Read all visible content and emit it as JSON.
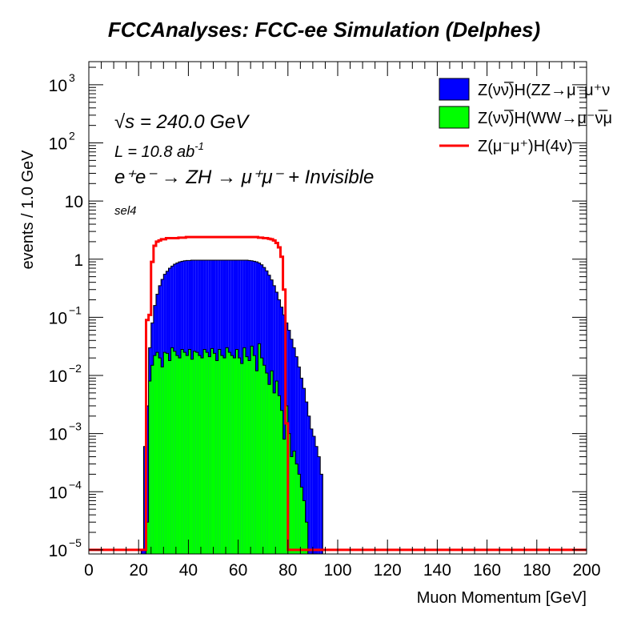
{
  "chart_data": {
    "type": "histogram",
    "title": "FCCAnalyses: FCC-ee Simulation (Delphes)",
    "xlabel": "Muon Momentum [GeV]",
    "ylabel": "events / 1.0 GeV",
    "xlim": [
      0,
      200
    ],
    "ylim": [
      8.5e-06,
      2500
    ],
    "yscale": "log",
    "x_ticks": [
      "0",
      "20",
      "40",
      "60",
      "80",
      "100",
      "120",
      "140",
      "160",
      "180",
      "200"
    ],
    "y_ticks": [
      {
        "base": "10",
        "exp": "3",
        "value": 1000
      },
      {
        "base": "10",
        "exp": "2",
        "value": 100
      },
      {
        "base": "10",
        "exp": "",
        "value": 10
      },
      {
        "base": "1",
        "exp": "",
        "value": 1
      },
      {
        "base": "10",
        "exp": "−1",
        "value": 0.1
      },
      {
        "base": "10",
        "exp": "−2",
        "value": 0.01
      },
      {
        "base": "10",
        "exp": "−3",
        "value": 0.001
      },
      {
        "base": "10",
        "exp": "−4",
        "value": 0.0001
      },
      {
        "base": "10",
        "exp": "−5",
        "value": 1e-05
      }
    ],
    "annotations": {
      "sqrt_s": "√s = 240.0 GeV",
      "lumi": "L = 10.8 ab",
      "lumi_exp": "-1",
      "process": "e⁺e⁻ → ZH → μ⁺μ⁻ + Invisible",
      "selection": "sel4"
    },
    "legend_position": "top-right",
    "series": [
      {
        "name": "Z(νν̅)H(ZZ→μ⁻μ⁺ν",
        "style": "stacked-fill",
        "color": "#0000ff",
        "bins": [
          [
            21,
            1e-05
          ],
          [
            22,
            0.0006
          ],
          [
            23,
            0.003
          ],
          [
            24,
            0.03
          ],
          [
            25,
            0.08
          ],
          [
            26,
            0.16
          ],
          [
            27,
            0.25
          ],
          [
            28,
            0.35
          ],
          [
            29,
            0.45
          ],
          [
            30,
            0.55
          ],
          [
            31,
            0.62
          ],
          [
            32,
            0.7
          ],
          [
            33,
            0.76
          ],
          [
            34,
            0.82
          ],
          [
            35,
            0.86
          ],
          [
            36,
            0.9
          ],
          [
            37,
            0.92
          ],
          [
            38,
            0.94
          ],
          [
            39,
            0.95
          ],
          [
            40,
            0.95
          ],
          [
            41,
            0.96
          ],
          [
            42,
            0.96
          ],
          [
            43,
            0.96
          ],
          [
            44,
            0.96
          ],
          [
            45,
            0.96
          ],
          [
            46,
            0.96
          ],
          [
            47,
            0.96
          ],
          [
            48,
            0.96
          ],
          [
            49,
            0.96
          ],
          [
            50,
            0.96
          ],
          [
            51,
            0.96
          ],
          [
            52,
            0.96
          ],
          [
            53,
            0.96
          ],
          [
            54,
            0.96
          ],
          [
            55,
            0.96
          ],
          [
            56,
            0.96
          ],
          [
            57,
            0.96
          ],
          [
            58,
            0.96
          ],
          [
            59,
            0.96
          ],
          [
            60,
            0.96
          ],
          [
            61,
            0.96
          ],
          [
            62,
            0.96
          ],
          [
            63,
            0.96
          ],
          [
            64,
            0.95
          ],
          [
            65,
            0.94
          ],
          [
            66,
            0.92
          ],
          [
            67,
            0.9
          ],
          [
            68,
            0.86
          ],
          [
            69,
            0.8
          ],
          [
            70,
            0.72
          ],
          [
            71,
            0.63
          ],
          [
            72,
            0.53
          ],
          [
            73,
            0.44
          ],
          [
            74,
            0.35
          ],
          [
            75,
            0.27
          ],
          [
            76,
            0.2
          ],
          [
            77,
            0.15
          ],
          [
            78,
            0.11
          ],
          [
            79,
            0.08
          ],
          [
            80,
            0.06
          ],
          [
            81,
            0.042
          ],
          [
            82,
            0.03
          ],
          [
            83,
            0.021
          ],
          [
            84,
            0.014
          ],
          [
            85,
            0.009
          ],
          [
            86,
            0.006
          ],
          [
            87,
            0.0035
          ],
          [
            88,
            0.002
          ],
          [
            89,
            0.0012
          ],
          [
            90,
            0.0009
          ],
          [
            91,
            0.0006
          ],
          [
            92,
            0.0004
          ],
          [
            93,
            0.0002
          ]
        ]
      },
      {
        "name": "Z(νν̅)H(WW→μ⁻ν̅μ",
        "style": "stacked-fill",
        "color": "#00ff00",
        "bins": [
          [
            23,
            3e-05
          ],
          [
            24,
            0.008
          ],
          [
            25,
            0.015
          ],
          [
            26,
            0.022
          ],
          [
            27,
            0.025
          ],
          [
            28,
            0.02
          ],
          [
            29,
            0.014
          ],
          [
            30,
            0.025
          ],
          [
            31,
            0.024
          ],
          [
            32,
            0.018
          ],
          [
            33,
            0.03
          ],
          [
            34,
            0.026
          ],
          [
            35,
            0.022
          ],
          [
            36,
            0.02
          ],
          [
            37,
            0.028
          ],
          [
            38,
            0.025
          ],
          [
            39,
            0.022
          ],
          [
            40,
            0.028
          ],
          [
            41,
            0.019
          ],
          [
            42,
            0.026
          ],
          [
            43,
            0.025
          ],
          [
            44,
            0.022
          ],
          [
            45,
            0.02
          ],
          [
            46,
            0.028
          ],
          [
            47,
            0.025
          ],
          [
            48,
            0.021
          ],
          [
            49,
            0.029
          ],
          [
            50,
            0.024
          ],
          [
            51,
            0.018
          ],
          [
            52,
            0.028
          ],
          [
            53,
            0.022
          ],
          [
            54,
            0.02
          ],
          [
            55,
            0.03
          ],
          [
            56,
            0.025
          ],
          [
            57,
            0.022
          ],
          [
            58,
            0.02
          ],
          [
            59,
            0.028
          ],
          [
            60,
            0.02
          ],
          [
            61,
            0.016
          ],
          [
            62,
            0.03
          ],
          [
            63,
            0.021
          ],
          [
            64,
            0.018
          ],
          [
            65,
            0.032
          ],
          [
            66,
            0.022
          ],
          [
            67,
            0.012
          ],
          [
            68,
            0.035
          ],
          [
            69,
            0.02
          ],
          [
            70,
            0.015
          ],
          [
            71,
            0.011
          ],
          [
            72,
            0.007
          ],
          [
            73,
            0.012
          ],
          [
            74,
            0.005
          ],
          [
            75,
            0.008
          ],
          [
            76,
            0.0045
          ],
          [
            77,
            0.0025
          ],
          [
            78,
            0.0008
          ],
          [
            79,
            0.003
          ],
          [
            80,
            0.001
          ],
          [
            81,
            0.0004
          ],
          [
            82,
            0.0005
          ],
          [
            83,
            0.0003
          ],
          [
            84,
            0.0002
          ],
          [
            85,
            0.00012
          ],
          [
            86,
            7e-05
          ],
          [
            87,
            3e-05
          ]
        ]
      },
      {
        "name": "Z(μ⁻μ⁺)H(4ν)",
        "style": "line",
        "color": "#ff0000",
        "bins": [
          [
            0,
            1e-05
          ],
          [
            1,
            1e-05
          ],
          [
            2,
            1e-05
          ],
          [
            3,
            1e-05
          ],
          [
            4,
            1e-05
          ],
          [
            5,
            1e-05
          ],
          [
            6,
            1e-05
          ],
          [
            7,
            1e-05
          ],
          [
            8,
            1e-05
          ],
          [
            9,
            1e-05
          ],
          [
            10,
            1e-05
          ],
          [
            11,
            1e-05
          ],
          [
            12,
            1e-05
          ],
          [
            13,
            1e-05
          ],
          [
            14,
            1e-05
          ],
          [
            15,
            1e-05
          ],
          [
            16,
            1e-05
          ],
          [
            17,
            1e-05
          ],
          [
            18,
            1e-05
          ],
          [
            19,
            1e-05
          ],
          [
            20,
            1e-05
          ],
          [
            21,
            1e-05
          ],
          [
            22,
            1e-05
          ],
          [
            23,
            0.09
          ],
          [
            24,
            0.11
          ],
          [
            25,
            0.9
          ],
          [
            26,
            1.7
          ],
          [
            27,
            2.0
          ],
          [
            28,
            2.1
          ],
          [
            29,
            2.2
          ],
          [
            30,
            2.2
          ],
          [
            31,
            2.3
          ],
          [
            32,
            2.3
          ],
          [
            33,
            2.3
          ],
          [
            34,
            2.3
          ],
          [
            35,
            2.3
          ],
          [
            36,
            2.35
          ],
          [
            37,
            2.35
          ],
          [
            38,
            2.35
          ],
          [
            39,
            2.4
          ],
          [
            40,
            2.4
          ],
          [
            41,
            2.4
          ],
          [
            42,
            2.4
          ],
          [
            43,
            2.4
          ],
          [
            44,
            2.4
          ],
          [
            45,
            2.4
          ],
          [
            46,
            2.4
          ],
          [
            47,
            2.4
          ],
          [
            48,
            2.4
          ],
          [
            49,
            2.4
          ],
          [
            50,
            2.4
          ],
          [
            51,
            2.4
          ],
          [
            52,
            2.4
          ],
          [
            53,
            2.4
          ],
          [
            54,
            2.4
          ],
          [
            55,
            2.4
          ],
          [
            56,
            2.4
          ],
          [
            57,
            2.4
          ],
          [
            58,
            2.4
          ],
          [
            59,
            2.4
          ],
          [
            60,
            2.4
          ],
          [
            61,
            2.4
          ],
          [
            62,
            2.4
          ],
          [
            63,
            2.4
          ],
          [
            64,
            2.4
          ],
          [
            65,
            2.4
          ],
          [
            66,
            2.4
          ],
          [
            67,
            2.4
          ],
          [
            68,
            2.35
          ],
          [
            69,
            2.35
          ],
          [
            70,
            2.3
          ],
          [
            71,
            2.3
          ],
          [
            72,
            2.25
          ],
          [
            73,
            2.2
          ],
          [
            74,
            2.1
          ],
          [
            75,
            1.9
          ],
          [
            76,
            1.6
          ],
          [
            77,
            1.1
          ],
          [
            78,
            0.3
          ],
          [
            79,
            0.0015
          ],
          [
            80,
            1e-05
          ],
          [
            81,
            1e-05
          ],
          [
            82,
            1e-05
          ],
          [
            83,
            1e-05
          ],
          [
            84,
            1e-05
          ],
          [
            85,
            1e-05
          ],
          [
            86,
            1e-05
          ],
          [
            87,
            1e-05
          ],
          [
            88,
            1e-05
          ],
          [
            89,
            1e-05
          ],
          [
            90,
            1e-05
          ],
          [
            91,
            1e-05
          ],
          [
            92,
            1e-05
          ],
          [
            93,
            1e-05
          ],
          [
            94,
            1e-05
          ],
          [
            95,
            1e-05
          ],
          [
            96,
            1e-05
          ],
          [
            97,
            1e-05
          ],
          [
            98,
            1e-05
          ],
          [
            99,
            1e-05
          ],
          [
            100,
            1e-05
          ],
          [
            110,
            1e-05
          ],
          [
            120,
            1e-05
          ],
          [
            130,
            1e-05
          ],
          [
            140,
            1e-05
          ],
          [
            150,
            1e-05
          ],
          [
            160,
            1e-05
          ],
          [
            170,
            1e-05
          ],
          [
            180,
            1e-05
          ],
          [
            190,
            1e-05
          ],
          [
            199,
            1e-05
          ]
        ]
      }
    ]
  }
}
